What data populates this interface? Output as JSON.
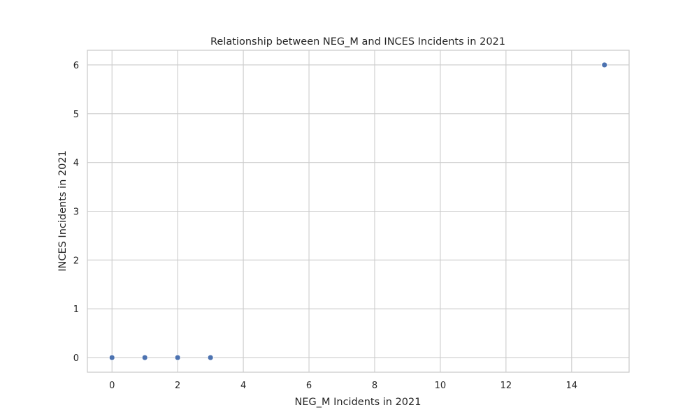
{
  "chart_data": {
    "type": "scatter",
    "title": "Relationship between NEG_M and INCES Incidents in 2021",
    "xlabel": "NEG_M Incidents in 2021",
    "ylabel": "INCES Incidents in 2021",
    "x": [
      0,
      1,
      2,
      3,
      15
    ],
    "y": [
      0,
      0,
      0,
      0,
      6
    ],
    "xlim": [
      -0.75,
      15.75
    ],
    "ylim": [
      -0.3,
      6.3
    ],
    "xticks": [
      0,
      2,
      4,
      6,
      8,
      10,
      12,
      14
    ],
    "yticks": [
      0,
      1,
      2,
      3,
      4,
      5,
      6
    ],
    "xtick_labels": [
      "0",
      "2",
      "4",
      "6",
      "8",
      "10",
      "12",
      "14"
    ],
    "ytick_labels": [
      "0",
      "1",
      "2",
      "3",
      "4",
      "5",
      "6"
    ],
    "grid": true,
    "marker_color": "#4c72b0",
    "grid_color": "#cccccc",
    "text_color": "#262626"
  }
}
